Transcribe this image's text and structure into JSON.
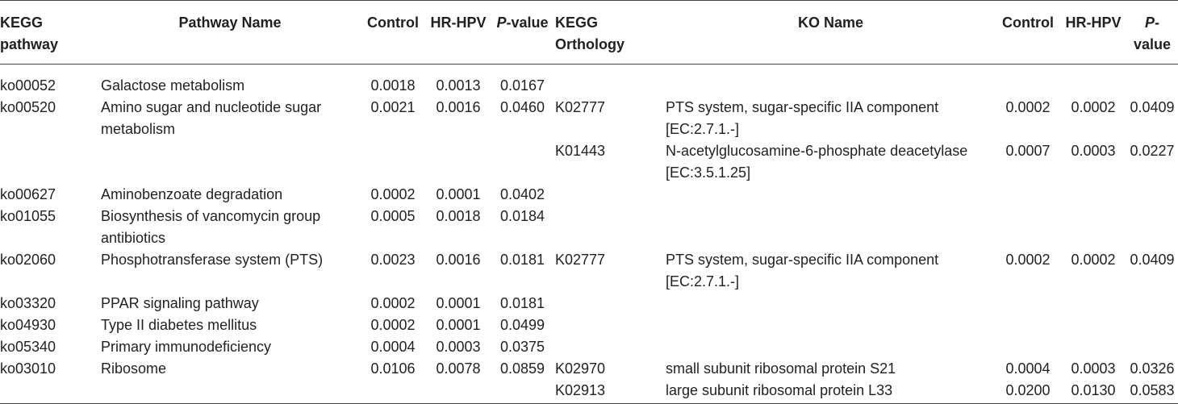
{
  "headers": {
    "kegg_pathway": "KEGG pathway",
    "pathway_name": "Pathway Name",
    "control": "Control",
    "hr_hpv": "HR-HPV",
    "p_italic": "P",
    "p_rest": "-value",
    "kegg_orthology": "KEGG Orthology",
    "ko_name": "KO Name",
    "control2": "Control",
    "hr_hpv2": "HR-HPV",
    "p_italic2": "P",
    "p_rest2": "-value"
  },
  "rows": [
    {
      "pathway": "ko00052",
      "name": "Galactose metabolism",
      "control": "0.0018",
      "hrhpv": "0.0013",
      "p": "0.0167",
      "ko": "",
      "ko_name": "",
      "ko_control": "",
      "ko_hrhpv": "",
      "ko_p": ""
    },
    {
      "pathway": "ko00520",
      "name": "Amino sugar and nucleotide sugar metabolism",
      "control": "0.0021",
      "hrhpv": "0.0016",
      "p": "0.0460",
      "ko": "K02777",
      "ko_name": "PTS system, sugar-specific IIA component [EC:2.7.1.-]",
      "ko_control": "0.0002",
      "ko_hrhpv": "0.0002",
      "ko_p": "0.0409"
    },
    {
      "pathway": "",
      "name": "",
      "control": "",
      "hrhpv": "",
      "p": "",
      "ko": "K01443",
      "ko_name": "N-acetylglucosamine-6-phosphate deacetylase [EC:3.5.1.25]",
      "ko_control": "0.0007",
      "ko_hrhpv": "0.0003",
      "ko_p": "0.0227"
    },
    {
      "pathway": "ko00627",
      "name": "Aminobenzoate degradation",
      "control": "0.0002",
      "hrhpv": "0.0001",
      "p": "0.0402",
      "ko": "",
      "ko_name": "",
      "ko_control": "",
      "ko_hrhpv": "",
      "ko_p": ""
    },
    {
      "pathway": "ko01055",
      "name": "Biosynthesis of vancomycin group antibiotics",
      "control": "0.0005",
      "hrhpv": "0.0018",
      "p": "0.0184",
      "ko": "",
      "ko_name": "",
      "ko_control": "",
      "ko_hrhpv": "",
      "ko_p": ""
    },
    {
      "pathway": "ko02060",
      "name": "Phosphotransferase system (PTS)",
      "control": "0.0023",
      "hrhpv": "0.0016",
      "p": "0.0181",
      "ko": "K02777",
      "ko_name": "PTS system, sugar-specific IIA component [EC:2.7.1.-]",
      "ko_control": "0.0002",
      "ko_hrhpv": "0.0002",
      "ko_p": "0.0409"
    },
    {
      "pathway": "ko03320",
      "name": "PPAR signaling pathway",
      "control": "0.0002",
      "hrhpv": "0.0001",
      "p": "0.0181",
      "ko": "",
      "ko_name": "",
      "ko_control": "",
      "ko_hrhpv": "",
      "ko_p": ""
    },
    {
      "pathway": "ko04930",
      "name": "Type II diabetes mellitus",
      "control": "0.0002",
      "hrhpv": "0.0001",
      "p": "0.0499",
      "ko": "",
      "ko_name": "",
      "ko_control": "",
      "ko_hrhpv": "",
      "ko_p": ""
    },
    {
      "pathway": "ko05340",
      "name": "Primary immunodeficiency",
      "control": "0.0004",
      "hrhpv": "0.0003",
      "p": "0.0375",
      "ko": "",
      "ko_name": "",
      "ko_control": "",
      "ko_hrhpv": "",
      "ko_p": ""
    },
    {
      "pathway": "ko03010",
      "name": "Ribosome",
      "control": "0.0106",
      "hrhpv": "0.0078",
      "p": "0.0859",
      "ko": "K02970",
      "ko_name": "small subunit ribosomal protein S21",
      "ko_control": "0.0004",
      "ko_hrhpv": "0.0003",
      "ko_p": "0.0326"
    },
    {
      "pathway": "",
      "name": "",
      "control": "",
      "hrhpv": "",
      "p": "",
      "ko": "K02913",
      "ko_name": "large subunit ribosomal protein L33",
      "ko_control": "0.0200",
      "ko_hrhpv": "0.0130",
      "ko_p": "0.0583"
    }
  ]
}
